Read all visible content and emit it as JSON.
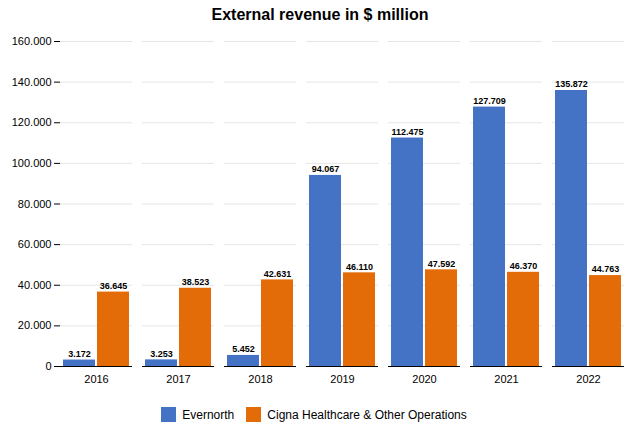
{
  "chart_data": {
    "type": "bar",
    "title": "External revenue in $ million",
    "categories": [
      "2016",
      "2017",
      "2018",
      "2019",
      "2020",
      "2021",
      "2022"
    ],
    "series": [
      {
        "name": "Evernorth",
        "color": "#4472C4",
        "values": [
          3172,
          3253,
          5452,
          94067,
          112475,
          127709,
          135872
        ],
        "value_labels": [
          "3.172",
          "3.253",
          "5.452",
          "94.067",
          "112.475",
          "127.709",
          "135.872"
        ]
      },
      {
        "name": "Cigna Healthcare & Other Operations",
        "color": "#E36C09",
        "values": [
          36645,
          38523,
          42631,
          46110,
          47592,
          46370,
          44763
        ],
        "value_labels": [
          "36.645",
          "38.523",
          "42.631",
          "46.110",
          "47.592",
          "46.370",
          "44.763"
        ]
      }
    ],
    "ylim": [
      0,
      160000
    ],
    "yticks": [
      0,
      {
        "value": 20000,
        "label": "20.000"
      },
      {
        "value": 40000,
        "label": "40.000"
      },
      {
        "value": 60000,
        "label": "60.000"
      },
      {
        "value": 80000,
        "label": "80.000"
      },
      {
        "value": 100000,
        "label": "100.000"
      },
      {
        "value": 120000,
        "label": "120.000"
      },
      {
        "value": 140000,
        "label": "140.000"
      },
      {
        "value": 160000,
        "label": "160.000"
      }
    ],
    "grid": true,
    "legend": "bottom",
    "data_labels": true
  }
}
